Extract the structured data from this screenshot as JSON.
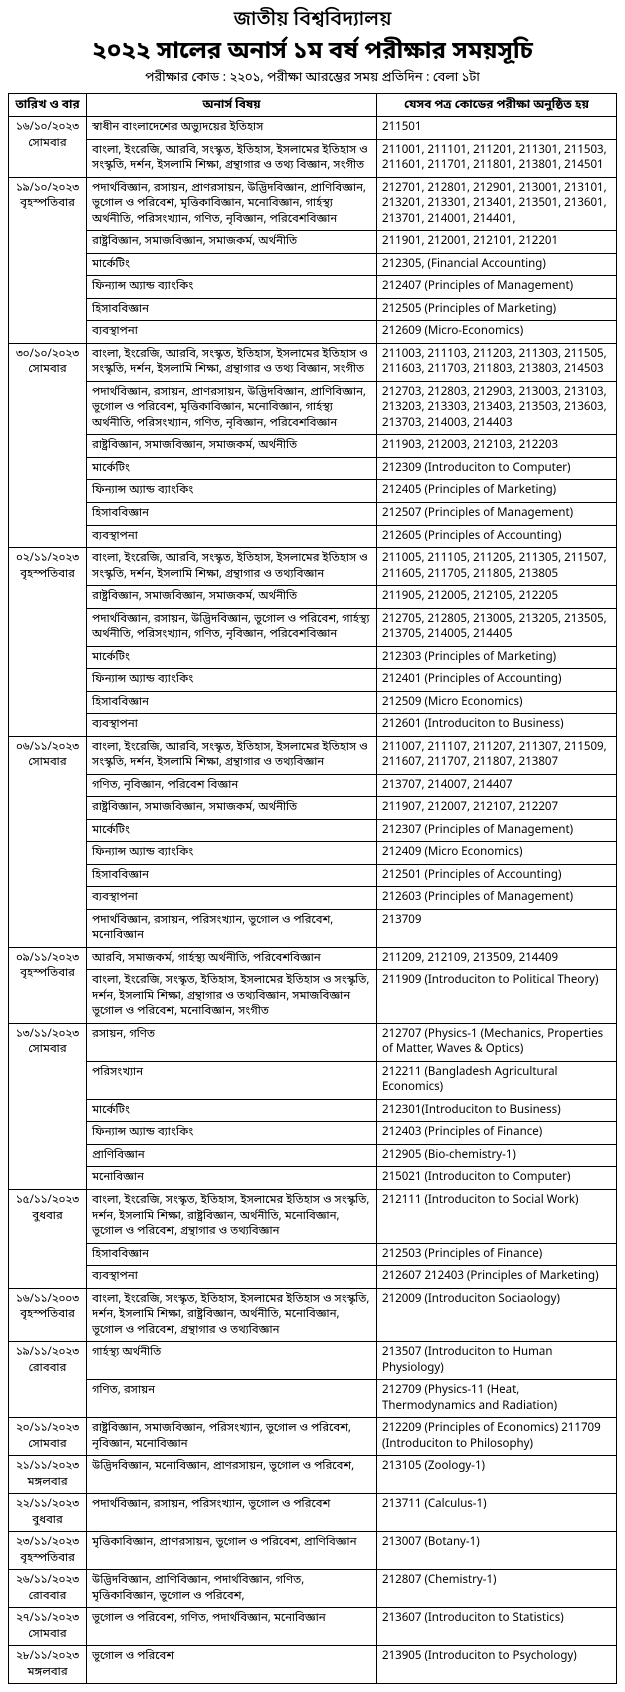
{
  "header": {
    "university": "জাতীয় বিশ্ববিদ্যালয়",
    "title": "২০২২ সালের অনার্স ১ম বর্ষ পরীক্ষার সময়সূচি",
    "subtitle": "পরীক্ষার কোড : ২২০১, পরীক্ষা আরম্ভের সময় প্রতিদিন : বেলা ১টা"
  },
  "columns": {
    "date": "তারিখ ও বার",
    "subject": "অনার্স বিষয়",
    "codes": "যেসব পত্র কোডের পরীক্ষা অনুষ্ঠিত হয়"
  },
  "groups": [
    {
      "date": "১৬/১০/২০২৩\nসোমবার",
      "rows": [
        {
          "subject": "স্বাধীন বাংলাদেশের অভ্যুদয়ের ইতিহাস",
          "codes": "211501"
        },
        {
          "subject": "বাংলা, ইংরেজি, আরবি, সংস্কৃত, ইতিহাস, ইসলামের ইতিহাস ও সংস্কৃতি, দর্শন, ইসলামি শিক্ষা, গ্রন্থাগার ও তথ্য বিজ্ঞান, সংগীত",
          "codes": "211001, 211101, 211201, 211301, 211503, 211601, 211701, 211801, 213801, 214501"
        }
      ]
    },
    {
      "date": "১৯/১০/২০২৩\nবৃহস্পতিবার",
      "rows": [
        {
          "subject": "পদার্থবিজ্ঞান, রসায়ন, প্রাণরসায়ন, উদ্ভিদবিজ্ঞান, প্রাণিবিজ্ঞান, ভূগোল ও পরিবেশ, মৃত্তিকাবিজ্ঞান, মনোবিজ্ঞান, গার্হস্থ্য অর্থনীতি, পরিসংখ্যান, গণিত, নৃবিজ্ঞান, পরিবেশবিজ্ঞান",
          "codes": "212701, 212801, 212901, 213001, 213101, 213201, 213301, 213401, 213501, 213601, 213701, 214001, 214401,"
        },
        {
          "subject": "রাষ্ট্রবিজ্ঞান, সমাজবিজ্ঞান, সমাজকর্ম, অর্থনীতি",
          "codes": "211901, 212001, 212101, 212201"
        },
        {
          "subject": "মার্কেটিং",
          "codes": "212305, (Financial Accounting)"
        },
        {
          "subject": "ফিন্যান্স অ্যান্ড ব্যাংকিং",
          "codes": "212407 (Principles of Management)"
        },
        {
          "subject": "হিসাববিজ্ঞান",
          "codes": "212505 (Principles of Marketing)"
        },
        {
          "subject": "ব্যবস্থাপনা",
          "codes": "212609 (Micro-Economics)"
        }
      ]
    },
    {
      "date": "৩০/১০/২০২৩\nসোমবার",
      "rows": [
        {
          "subject": "বাংলা, ইংরেজি, আরবি, সংস্কৃত, ইতিহাস, ইসলামের ইতিহাস ও সংস্কৃতি, দর্শন, ইসলামি শিক্ষা, গ্রন্থাগার ও তথ্য বিজ্ঞান, সংগীত",
          "codes": "211003, 211103, 211203, 211303, 211505, 211603, 211703, 211803, 213803, 214503"
        },
        {
          "subject": "পদার্থবিজ্ঞান, রসায়ন, প্রাণরসায়ন, উদ্ভিদবিজ্ঞান, প্রাণিবিজ্ঞান, ভূগোল ও পরিবেশ, মৃত্তিকাবিজ্ঞান, মনোবিজ্ঞান, গার্হস্থ্য অর্থনীতি, পরিসংখ্যান, গণিত, নৃবিজ্ঞান, পরিবেশবিজ্ঞান",
          "codes": "212703, 212803, 212903, 213003, 213103, 213203, 213303, 213403, 213503, 213603, 213703, 214003, 214403"
        },
        {
          "subject": "রাষ্ট্রবিজ্ঞান, সমাজবিজ্ঞান, সমাজকর্ম, অর্থনীতি",
          "codes": "211903, 212003, 212103, 212203"
        },
        {
          "subject": "মার্কেটিং",
          "codes": "212309 (Introduciton to Computer)"
        },
        {
          "subject": "ফিন্যান্স অ্যান্ড ব্যাংকিং",
          "codes": "212405 (Principles of Marketing)"
        },
        {
          "subject": "হিসাববিজ্ঞান",
          "codes": "212507 (Principles of Management)"
        },
        {
          "subject": "ব্যবস্থাপনা",
          "codes": "212605 (Principles of Accounting)"
        }
      ]
    },
    {
      "date": "০২/১১/২০২৩\nবৃহস্পতিবার",
      "rows": [
        {
          "subject": "বাংলা, ইংরেজি, আরবি, সংস্কৃত, ইতিহাস, ইসলামের ইতিহাস ও সংস্কৃতি, দর্শন, ইসলামি শিক্ষা, গ্রন্থাগার ও তথ্যবিজ্ঞান",
          "codes": "211005, 211105, 211205, 211305, 211507, 211605, 211705, 211805, 213805"
        },
        {
          "subject": "রাষ্ট্রবিজ্ঞান, সমাজবিজ্ঞান, সমাজকর্ম, অর্থনীতি",
          "codes": "211905, 212005, 212105, 212205"
        },
        {
          "subject": "পদার্থবিজ্ঞান, রসায়ন, উদ্ভিদবিজ্ঞান, ভূগোল ও পরিবেশ, গার্হস্থ্য অর্থনীতি, পরিসংখ্যান, গণিত, নৃবিজ্ঞান, পরিবেশবিজ্ঞান",
          "codes": "212705, 212805, 213005, 213205, 213505, 213705, 214005, 214405"
        },
        {
          "subject": "মার্কেটিং",
          "codes": "212303 (Principles of Marketing)"
        },
        {
          "subject": "ফিন্যান্স অ্যান্ড ব্যাংকিং",
          "codes": "212401 (Principles of Accounting)"
        },
        {
          "subject": "হিসাববিজ্ঞান",
          "codes": "212509 (Micro Economics)"
        },
        {
          "subject": "ব্যবস্থাপনা",
          "codes": "212601 (Introduciton to Business)"
        }
      ]
    },
    {
      "date": "০৬/১১/২০২৩\nসোমবার",
      "rows": [
        {
          "subject": "বাংলা, ইংরেজি, আরবি, সংস্কৃত, ইতিহাস, ইসলামের ইতিহাস ও সংস্কৃতি, দর্শন, ইসলামি শিক্ষা, গ্রন্থাগার ও তথ্যবিজ্ঞান",
          "codes": "211007, 211107, 211207, 211307, 211509, 211607, 211707, 211807, 213807"
        },
        {
          "subject": "গণিত, নৃবিজ্ঞান, পরিবেশ বিজ্ঞান",
          "codes": "213707, 214007, 214407"
        },
        {
          "subject": "রাষ্ট্রবিজ্ঞান, সমাজবিজ্ঞান, সমাজকর্ম, অর্থনীতি",
          "codes": "211907, 212007, 212107, 212207"
        },
        {
          "subject": "মার্কেটিং",
          "codes": "212307 (Principles of Management)"
        },
        {
          "subject": "ফিন্যান্স অ্যান্ড ব্যাংকিং",
          "codes": "212409 (Micro Economics)"
        },
        {
          "subject": "হিসাববিজ্ঞান",
          "codes": "212501 (Principles of Accounting)"
        },
        {
          "subject": "ব্যবস্থাপনা",
          "codes": "212603 (Principles of Management)"
        },
        {
          "subject": "পদার্থবিজ্ঞান, রসায়ন, পরিসংখ্যান, ভূগোল ও পরিবেশ, মনোবিজ্ঞান",
          "codes": "213709"
        }
      ]
    },
    {
      "date": "০৯/১১/২০২৩\nবৃহস্পতিবার",
      "rows": [
        {
          "subject": "আরবি, সমাজকর্ম, গার্হস্থ্য অর্থনীতি, পরিবেশবিজ্ঞান",
          "codes": "211209, 212109, 213509, 214409"
        },
        {
          "subject": "বাংলা, ইংরেজি, সংস্কৃত, ইতিহাস, ইসলামের ইতিহাস ও সংস্কৃতি, দর্শন, ইসলামি শিক্ষা, গ্রন্থাগার ও তথ্যবিজ্ঞান, সমাজবিজ্ঞান ভূগোল ও পরিবেশ, মনোবিজ্ঞান, সংগীত",
          "codes": "211909 (Introduciton to Political Theory)"
        }
      ]
    },
    {
      "date": "১৩/১১/২০২৩\nসোমবার",
      "rows": [
        {
          "subject": "রসায়ন, গণিত",
          "codes": "212707 (Physics-1 (Mechanics, Properties of Matter, Waves & Optics)"
        },
        {
          "subject": "পরিসংখ্যান",
          "codes": "212211 (Bangladesh Agricultural Economics)"
        },
        {
          "subject": "মার্কেটিং",
          "codes": "212301(Introduciton to Business)"
        },
        {
          "subject": "ফিন্যান্স অ্যান্ড ব্যাংকিং",
          "codes": "212403 (Principles of Finance)"
        },
        {
          "subject": "প্রাণিবিজ্ঞান",
          "codes": "212905 (Bio-chemistry-1)"
        },
        {
          "subject": "মনোবিজ্ঞান",
          "codes": "215021 (Introduciton to Computer)"
        }
      ]
    },
    {
      "date": "১৫/১১/২০২৩\nবুধবার",
      "rows": [
        {
          "subject": "বাংলা, ইংরেজি, সংস্কৃত, ইতিহাস, ইসলামের ইতিহাস ও সংস্কৃতি, দর্শন, ইসলামি শিক্ষা, রাষ্ট্রবিজ্ঞান, অর্থনীতি, মনোবিজ্ঞান, ভূগোল ও পরিবেশ, গ্রন্থাগার ও তথ্যবিজ্ঞান",
          "codes": "212111 (Introduciton to Social Work)"
        },
        {
          "subject": "হিসাববিজ্ঞান",
          "codes": "212503 (Principles of Finance)"
        },
        {
          "subject": "ব্যবস্থাপনা",
          "codes": "212607 212403 (Principles of Marketing)"
        }
      ]
    },
    {
      "date": "১৬/১১/২০০৩\nবৃহস্পতিবার",
      "rows": [
        {
          "subject": "বাংলা, ইংরেজি, সংস্কৃত, ইতিহাস, ইসলামের ইতিহাস ও সংস্কৃতি, দর্শন, ইসলামি শিক্ষা, রাষ্ট্রবিজ্ঞান, অর্থনীতি, মনোবিজ্ঞান, ভূগোল ও পরিবেশ, গ্রন্থাগার ও তথ্যবিজ্ঞান",
          "codes": "212009 (Introduciton Sociaology)"
        }
      ]
    },
    {
      "date": "১৯/১১/২০২৩\nরোববার",
      "rows": [
        {
          "subject": "গার্হস্থ্য অর্থনীতি",
          "codes": "213507 (Introduciton to Human Physiology)"
        },
        {
          "subject": "গণিত, রসায়ন",
          "codes": "212709 (Physics-11 (Heat, Thermodynamics and Radiation)"
        }
      ]
    },
    {
      "date": "২০/১১/২০২৩\nসোমবার",
      "rows": [
        {
          "subject": "রাষ্ট্রবিজ্ঞান, সমাজবিজ্ঞান, পরিসংখ্যান, ভূগোল ও পরিবেশ, নৃবিজ্ঞান, মনোবিজ্ঞান",
          "codes": "212209 (Principles of Economics) 211709 (Introduciton to Philosophy)"
        }
      ]
    },
    {
      "date": "২১/১১/২০২৩\nমঙ্গলবার",
      "rows": [
        {
          "subject": "উদ্ভিদবিজ্ঞান, মনোবিজ্ঞান, প্রাণরসায়ন, ভূগোল ও পরিবেশ,",
          "codes": "213105 (Zoology-1)"
        }
      ]
    },
    {
      "date": "২২/১১/২০২৩\nবুধবার",
      "rows": [
        {
          "subject": "পদার্থবিজ্ঞান, রসায়ন, পরিসংখ্যান, ভূগোল ও পরিবেশ",
          "codes": "213711 (Calculus-1)"
        }
      ]
    },
    {
      "date": "২৩/১১/২০২৩\nবৃহস্পতিবার",
      "rows": [
        {
          "subject": "মৃত্তিকাবিজ্ঞান, প্রাণরসায়ন, ভূগোল ও পরিবেশ, প্রাণিবিজ্ঞান",
          "codes": "213007 (Botany-1)"
        }
      ]
    },
    {
      "date": "২৬/১১/২০২৩\nরোববার",
      "rows": [
        {
          "subject": "উদ্ভিদবিজ্ঞান, প্রাণিবিজ্ঞান, পদার্থবিজ্ঞান, গণিত, মৃত্তিকাবিজ্ঞান, ভূগোল ও পরিবেশ,",
          "codes": "212807 (Chemistry-1)"
        }
      ]
    },
    {
      "date": "২৭/১১/২০২৩\nসোমবার",
      "rows": [
        {
          "subject": "ভূগোল ও পরিবেশ, গণিত, পদার্থবিজ্ঞান, মনোবিজ্ঞান",
          "codes": "213607 (Introduciton to Statistics)"
        }
      ]
    },
    {
      "date": "২৮/১১/২০২৩\nমঙ্গলবার",
      "rows": [
        {
          "subject": "ভূগোল ও পরিবেশ",
          "codes": "213905 (Introduciton to Psychology)"
        }
      ]
    }
  ]
}
